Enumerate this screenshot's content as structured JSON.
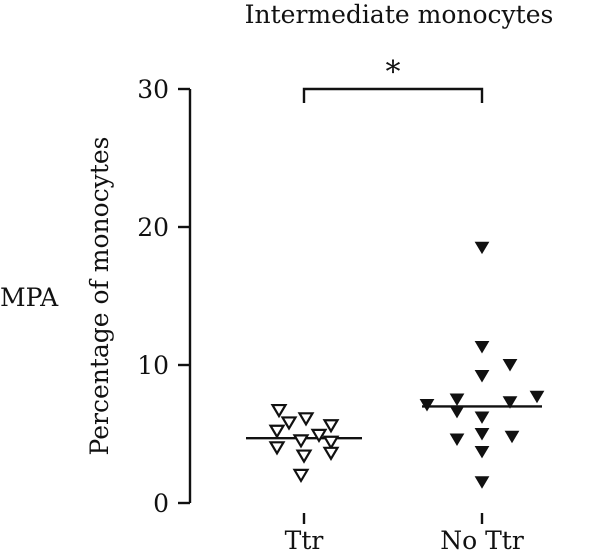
{
  "chart_data": {
    "type": "scatter",
    "title": "Intermediate monocytes",
    "side_label": "MPA",
    "xlabel": "",
    "ylabel": "Percentage of monocytes",
    "categories": [
      "Ttr",
      "No Ttr"
    ],
    "ylim": [
      0,
      30
    ],
    "yticks": [
      0,
      10,
      20,
      30
    ],
    "grid": false,
    "legend": "none",
    "significance": {
      "between": [
        "Ttr",
        "No Ttr"
      ],
      "label": "*"
    },
    "series": [
      {
        "category": "Ttr",
        "marker": "open-down-triangle",
        "median": 4.7,
        "points": [
          6.7,
          6.1,
          5.6,
          5.8,
          5.2,
          4.9,
          4.5,
          4.4,
          4.0,
          3.6,
          3.4,
          2.0
        ]
      },
      {
        "category": "No Ttr",
        "marker": "filled-down-triangle",
        "median": 7.0,
        "points": [
          18.5,
          11.3,
          10.0,
          9.2,
          7.7,
          7.5,
          7.3,
          7.1,
          6.6,
          6.2,
          5.0,
          4.8,
          4.6,
          3.7,
          1.5
        ]
      }
    ],
    "colors": {
      "axis": "#111111",
      "marker": "#111111",
      "open_marker_fill": "#ffffff"
    }
  }
}
